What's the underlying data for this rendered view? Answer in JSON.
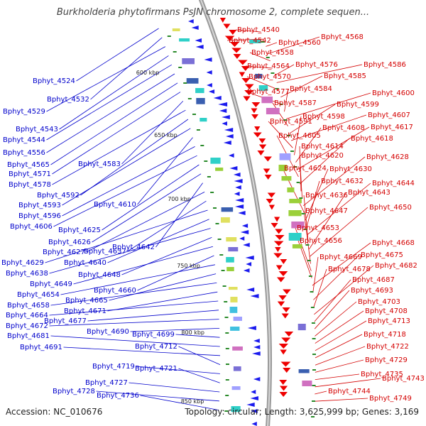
{
  "title": "Burkholderia phytofirmans PsJN chromosome 2, complete sequen...",
  "footer": {
    "accession": "Accession: NC_010676",
    "summary": "Topology: circular; Length: 3,625,999 bp; Genes: 3,169"
  },
  "colors": {
    "forward_label": "#d40000",
    "reverse_label": "#0000cc",
    "backbone": "#888888",
    "forward_gene": "#ee0000",
    "reverse_gene": "#1a1aee"
  },
  "kbp_markers": [
    "600 kbp",
    "650 kbp",
    "700 kbp",
    "750 kbp",
    "800 kbp",
    "850 kbp"
  ],
  "left_labels": [
    "Bphyt_4524",
    "Bphyt_4532",
    "Bphyt_4529",
    "Bphyt_4543",
    "Bphyt_4544",
    "Bphyt_4556",
    "Bphyt_4565",
    "Bphyt_4571",
    "Bphyt_4583",
    "Bphyt_4578",
    "Bphyt_4592",
    "Bphyt_4593",
    "Bphyt_4610",
    "Bphyt_4596",
    "Bphyt_4606",
    "Bphyt_4625",
    "Bphyt_4626",
    "Bphyt_4642",
    "Bphyt_4627",
    "Bphyt_4637",
    "Bphyt_4629",
    "Bphyt_4640",
    "Bphyt_4638",
    "Bphyt_4648",
    "Bphyt_4649",
    "Bphyt_4660",
    "Bphyt_4654",
    "Bphyt_4665",
    "Bphyt_4658",
    "Bphyt_4671",
    "Bphyt_4664",
    "Bphyt_4677",
    "Bphyt_4672",
    "Bphyt_4690",
    "Bphyt_4699",
    "Bphyt_4681",
    "Bphyt_4691",
    "Bphyt_4712",
    "Bphyt_4719",
    "Bphyt_4721",
    "Bphyt_4727",
    "Bphyt_4728",
    "Bphyt_4736"
  ],
  "right_labels": [
    "Bphyt_4540",
    "Bphyt_4542",
    "Bphyt_4560",
    "Bphyt_4568",
    "Bphyt_4558",
    "Bphyt_4564",
    "Bphyt_4576",
    "Bphyt_4586",
    "Bphyt_4570",
    "Bphyt_4585",
    "Bphyt_4577",
    "Bphyt_4584",
    "Bphyt_4600",
    "Bphyt_4587",
    "Bphyt_4599",
    "Bphyt_4607",
    "Bphyt_4591",
    "Bphyt_4598",
    "Bphyt_4608",
    "Bphyt_4617",
    "Bphyt_4605",
    "Bphyt_4618",
    "Bphyt_4614",
    "Bphyt_4620",
    "Bphyt_4628",
    "Bphyt_4624",
    "Bphyt_4630",
    "Bphyt_4632",
    "Bphyt_4644",
    "Bphyt_4636",
    "Bphyt_4643",
    "Bphyt_4650",
    "Bphyt_4647",
    "Bphyt_4653",
    "Bphyt_4656",
    "Bphyt_4668",
    "Bphyt_4669",
    "Bphyt_4675",
    "Bphyt_4678",
    "Bphyt_4682",
    "Bphyt_4687",
    "Bphyt_4693",
    "Bphyt_4703",
    "Bphyt_4708",
    "Bphyt_4713",
    "Bphyt_4718",
    "Bphyt_4722",
    "Bphyt_4729",
    "Bphyt_4735",
    "Bphyt_4743",
    "Bphyt_4744",
    "Bphyt_4749"
  ]
}
